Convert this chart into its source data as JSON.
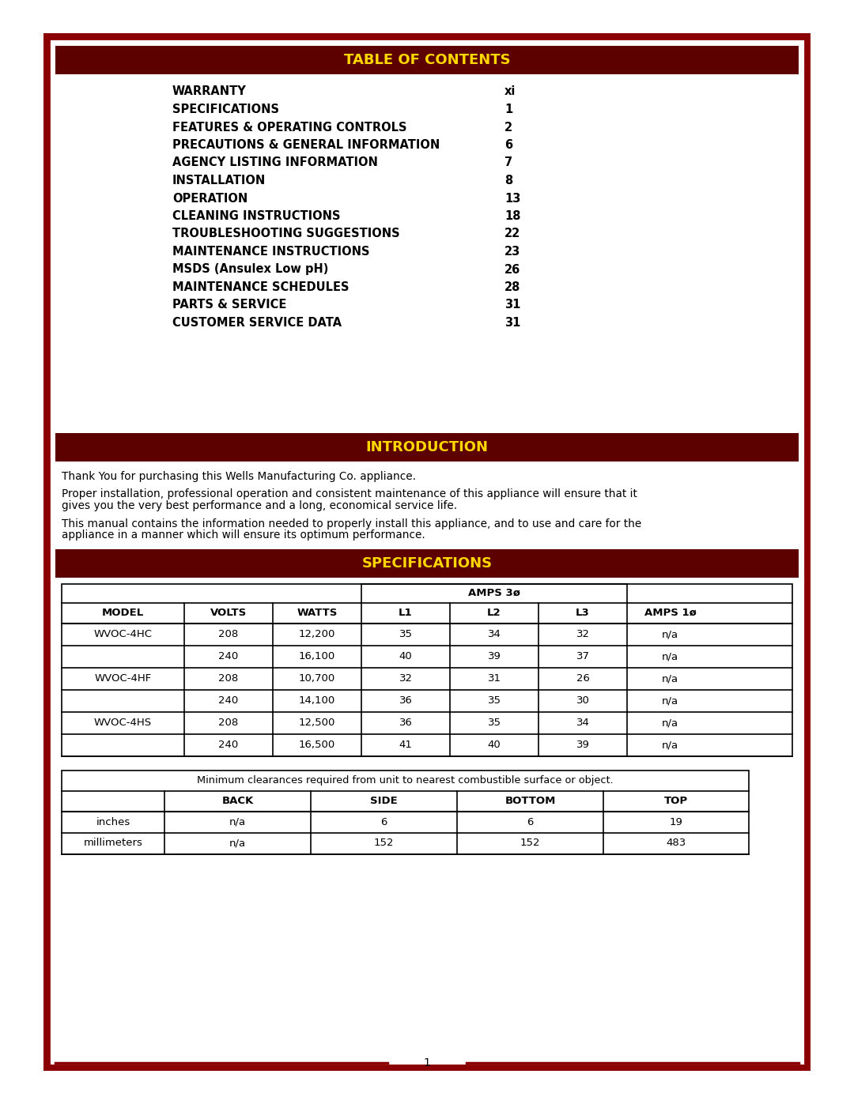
{
  "page_bg": "#ffffff",
  "border_outer_color": "#8B0000",
  "border_inner_color": "#8B0000",
  "header_bg": "#5C0000",
  "header_text_color": "#FFD700",
  "body_text_color": "#000000",
  "table_border_color": "#000000",
  "toc_title": "TABLE OF CONTENTS",
  "toc_items": [
    [
      "WARRANTY",
      "xi"
    ],
    [
      "SPECIFICATIONS",
      "1"
    ],
    [
      "FEATURES & OPERATING CONTROLS",
      "2"
    ],
    [
      "PRECAUTIONS & GENERAL INFORMATION",
      "6"
    ],
    [
      "AGENCY LISTING INFORMATION",
      "7"
    ],
    [
      "INSTALLATION",
      "8"
    ],
    [
      "OPERATION",
      "13"
    ],
    [
      "CLEANING INSTRUCTIONS",
      "18"
    ],
    [
      "TROUBLESHOOTING SUGGESTIONS",
      "22"
    ],
    [
      "MAINTENANCE INSTRUCTIONS",
      "23"
    ],
    [
      "MSDS (Ansulex Low pH)",
      "26"
    ],
    [
      "MAINTENANCE SCHEDULES",
      "28"
    ],
    [
      "PARTS & SERVICE",
      "31"
    ],
    [
      "CUSTOMER SERVICE DATA",
      "31"
    ]
  ],
  "intro_title": "INTRODUCTION",
  "intro_paragraphs": [
    "Thank You for purchasing this Wells Manufacturing Co. appliance.",
    "Proper installation, professional operation and consistent maintenance of this appliance will ensure that it gives you the very best performance and a long, economical service life.",
    "This manual contains the information needed to properly install this appliance, and to use and care for the appliance in a manner which will ensure its optimum performance."
  ],
  "spec_title": "SPECIFICATIONS",
  "spec_headers": [
    "MODEL",
    "VOLTS",
    "WATTS",
    "L1",
    "L2",
    "L3",
    "AMPS 1ø"
  ],
  "spec_subheader": "AMPS 3ø",
  "spec_data": [
    [
      "WVOC-4HC",
      "208",
      "12,200",
      "35",
      "34",
      "32",
      "n/a"
    ],
    [
      "",
      "240",
      "16,100",
      "40",
      "39",
      "37",
      "n/a"
    ],
    [
      "WVOC-4HF",
      "208",
      "10,700",
      "32",
      "31",
      "26",
      "n/a"
    ],
    [
      "",
      "240",
      "14,100",
      "36",
      "35",
      "30",
      "n/a"
    ],
    [
      "WVOC-4HS",
      "208",
      "12,500",
      "36",
      "35",
      "34",
      "n/a"
    ],
    [
      "",
      "240",
      "16,500",
      "41",
      "40",
      "39",
      "n/a"
    ]
  ],
  "clearance_note": "Minimum clearances required from unit to nearest combustible surface or object.",
  "clearance_headers": [
    "",
    "BACK",
    "SIDE",
    "BOTTOM",
    "TOP"
  ],
  "clearance_data": [
    [
      "inches",
      "n/a",
      "6",
      "6",
      "19"
    ],
    [
      "millimeters",
      "n/a",
      "152",
      "152",
      "483"
    ]
  ],
  "page_number": "1"
}
